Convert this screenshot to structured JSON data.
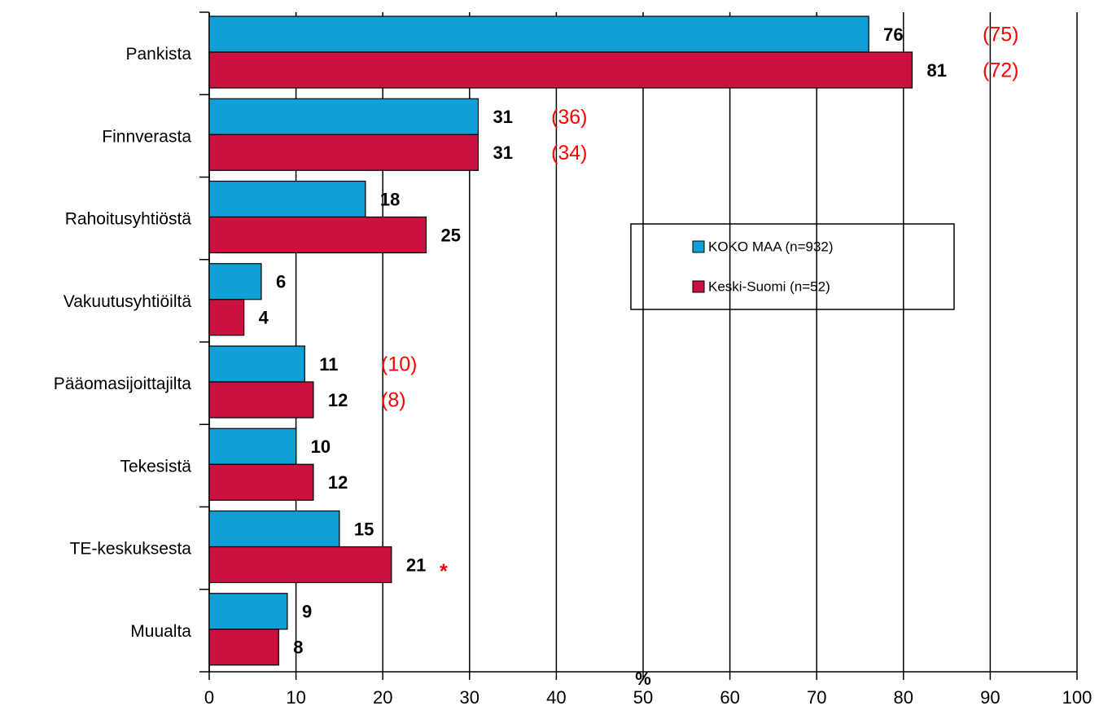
{
  "chart_data": {
    "type": "bar",
    "orientation": "horizontal",
    "categories": [
      "Pankista",
      "Finnverasta",
      "Rahoitusyhtiöstä",
      "Vakuutusyhtiöiltä",
      "Pääomasijoittajilta",
      "Tekesistä",
      "TE-keskuksesta",
      "Muualta"
    ],
    "series": [
      {
        "name": "KOKO MAA (n=932)",
        "color": "#0fa0d8",
        "values": [
          76,
          31,
          18,
          6,
          11,
          10,
          15,
          9
        ],
        "annotations": [
          "(75)",
          "(36)",
          null,
          null,
          "(10)",
          null,
          null,
          null
        ]
      },
      {
        "name": "Keski-Suomi (n=52)",
        "color": "#cc1040",
        "values": [
          81,
          31,
          25,
          4,
          12,
          12,
          21,
          8
        ],
        "annotations": [
          "(72)",
          "(34)",
          null,
          null,
          "(8)",
          null,
          "*",
          null
        ]
      }
    ],
    "xlabel": "%",
    "xlim": [
      0,
      100
    ],
    "xticks": [
      0,
      10,
      20,
      30,
      40,
      50,
      60,
      70,
      80,
      90,
      100
    ],
    "grid": true
  }
}
